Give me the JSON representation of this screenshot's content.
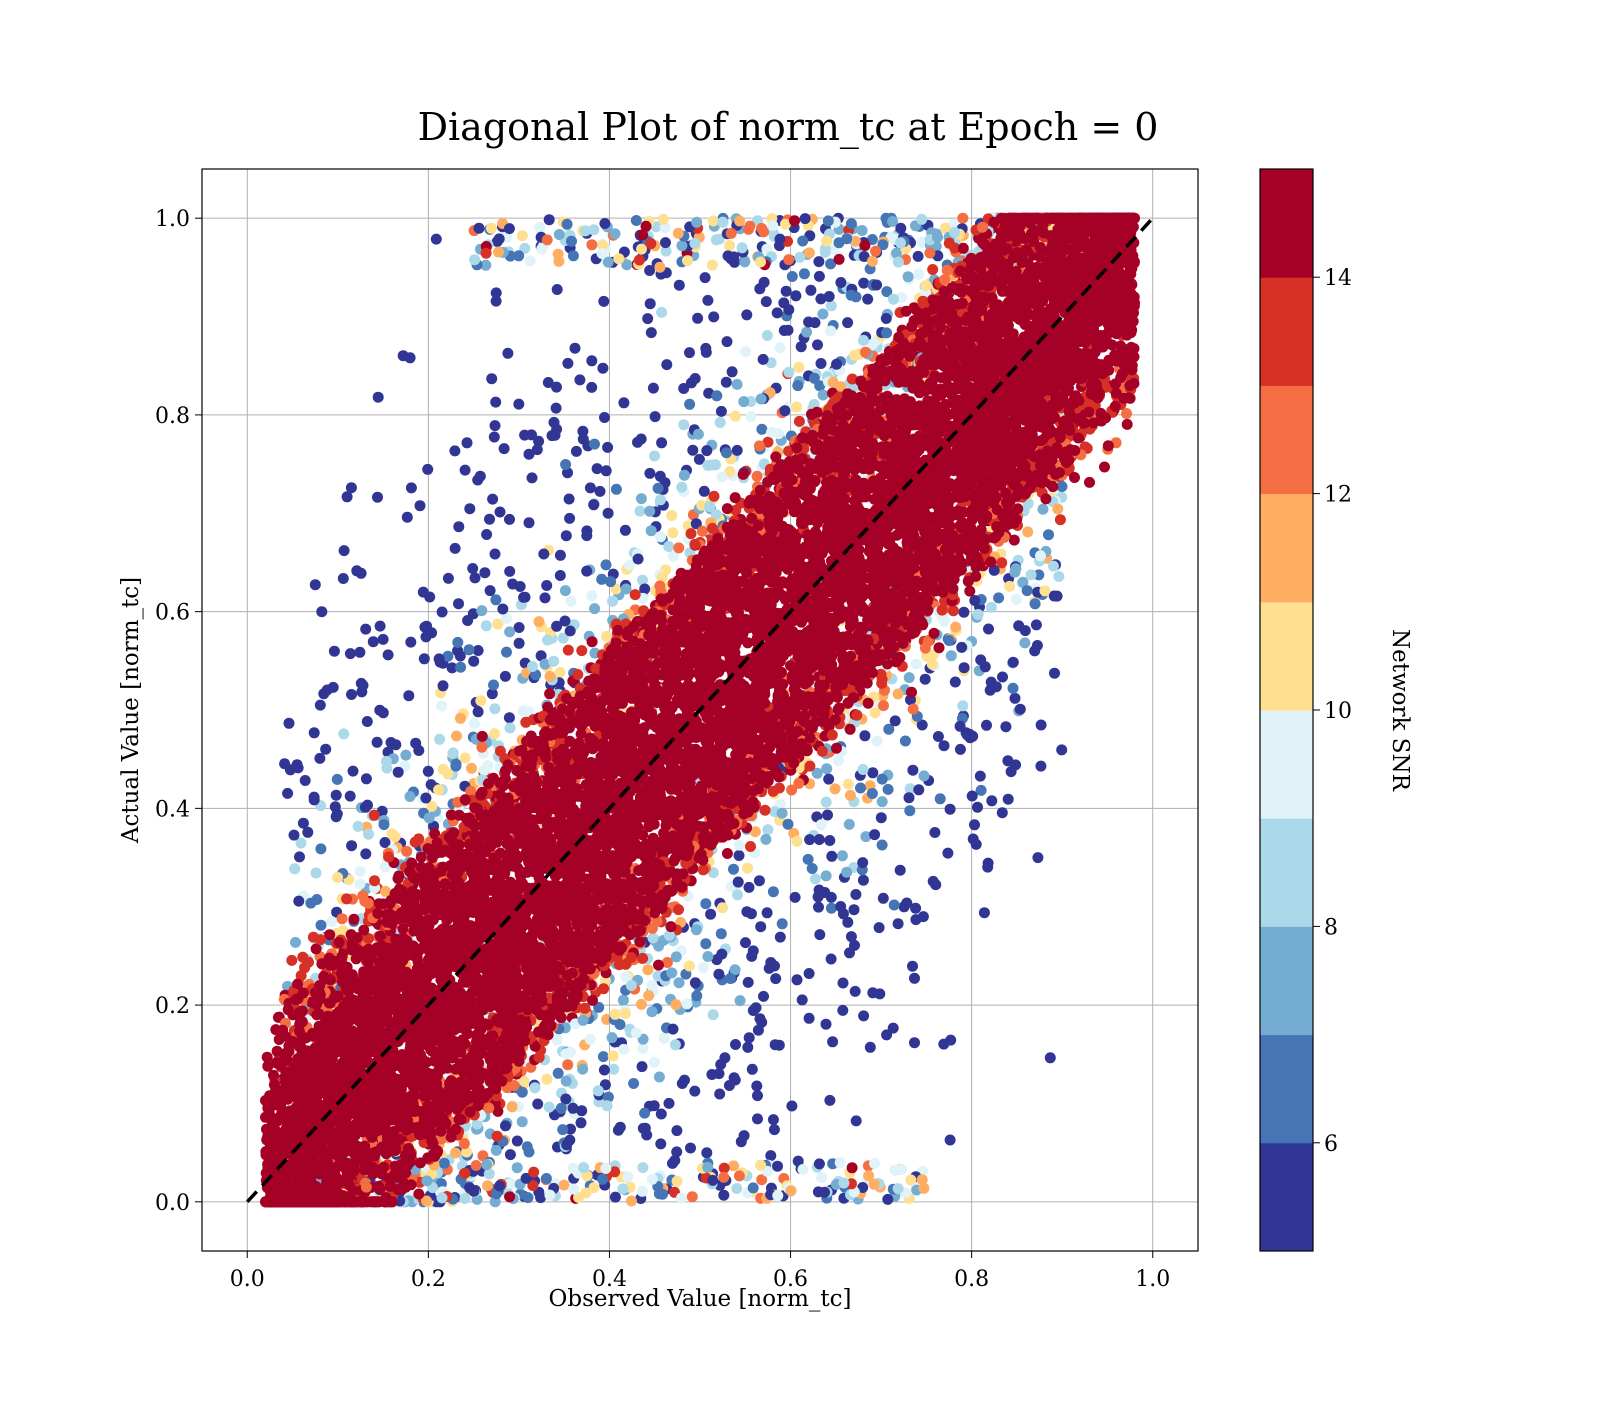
{
  "chart_data": {
    "type": "scatter",
    "title": "Diagonal Plot of norm_tc at Epoch = 0",
    "xlabel": "Observed Value [norm_tc]",
    "ylabel": "Actual Value [norm_tc]",
    "xlim": [
      -0.05,
      1.05
    ],
    "ylim": [
      -0.05,
      1.05
    ],
    "x_ticks": [
      "0.0",
      "0.2",
      "0.4",
      "0.6",
      "0.8",
      "1.0"
    ],
    "y_ticks": [
      "0.0",
      "0.2",
      "0.4",
      "0.6",
      "0.8",
      "1.0"
    ],
    "grid": true,
    "reference_line": {
      "style": "dashed",
      "color": "#000000",
      "x": [
        0,
        1
      ],
      "y": [
        0,
        1
      ]
    },
    "colorbar": {
      "label": "Network SNR",
      "range": [
        5,
        15
      ],
      "levels": [
        5,
        6,
        7,
        8,
        9,
        10,
        11,
        12,
        13,
        14,
        15
      ],
      "ticks": [
        "6",
        "8",
        "10",
        "12",
        "14"
      ],
      "colors": [
        "#313695",
        "#4575b4",
        "#74add1",
        "#abd9e9",
        "#e0f3f8",
        "#fee090",
        "#fdae61",
        "#f46d43",
        "#d73027",
        "#a50026"
      ]
    },
    "point_summary": {
      "description_values": [
        {
          "observed_range": [
            0.02,
            0.98
          ],
          "actual_relation": "dense band along y = x (high SNR)"
        }
      ]
    }
  }
}
